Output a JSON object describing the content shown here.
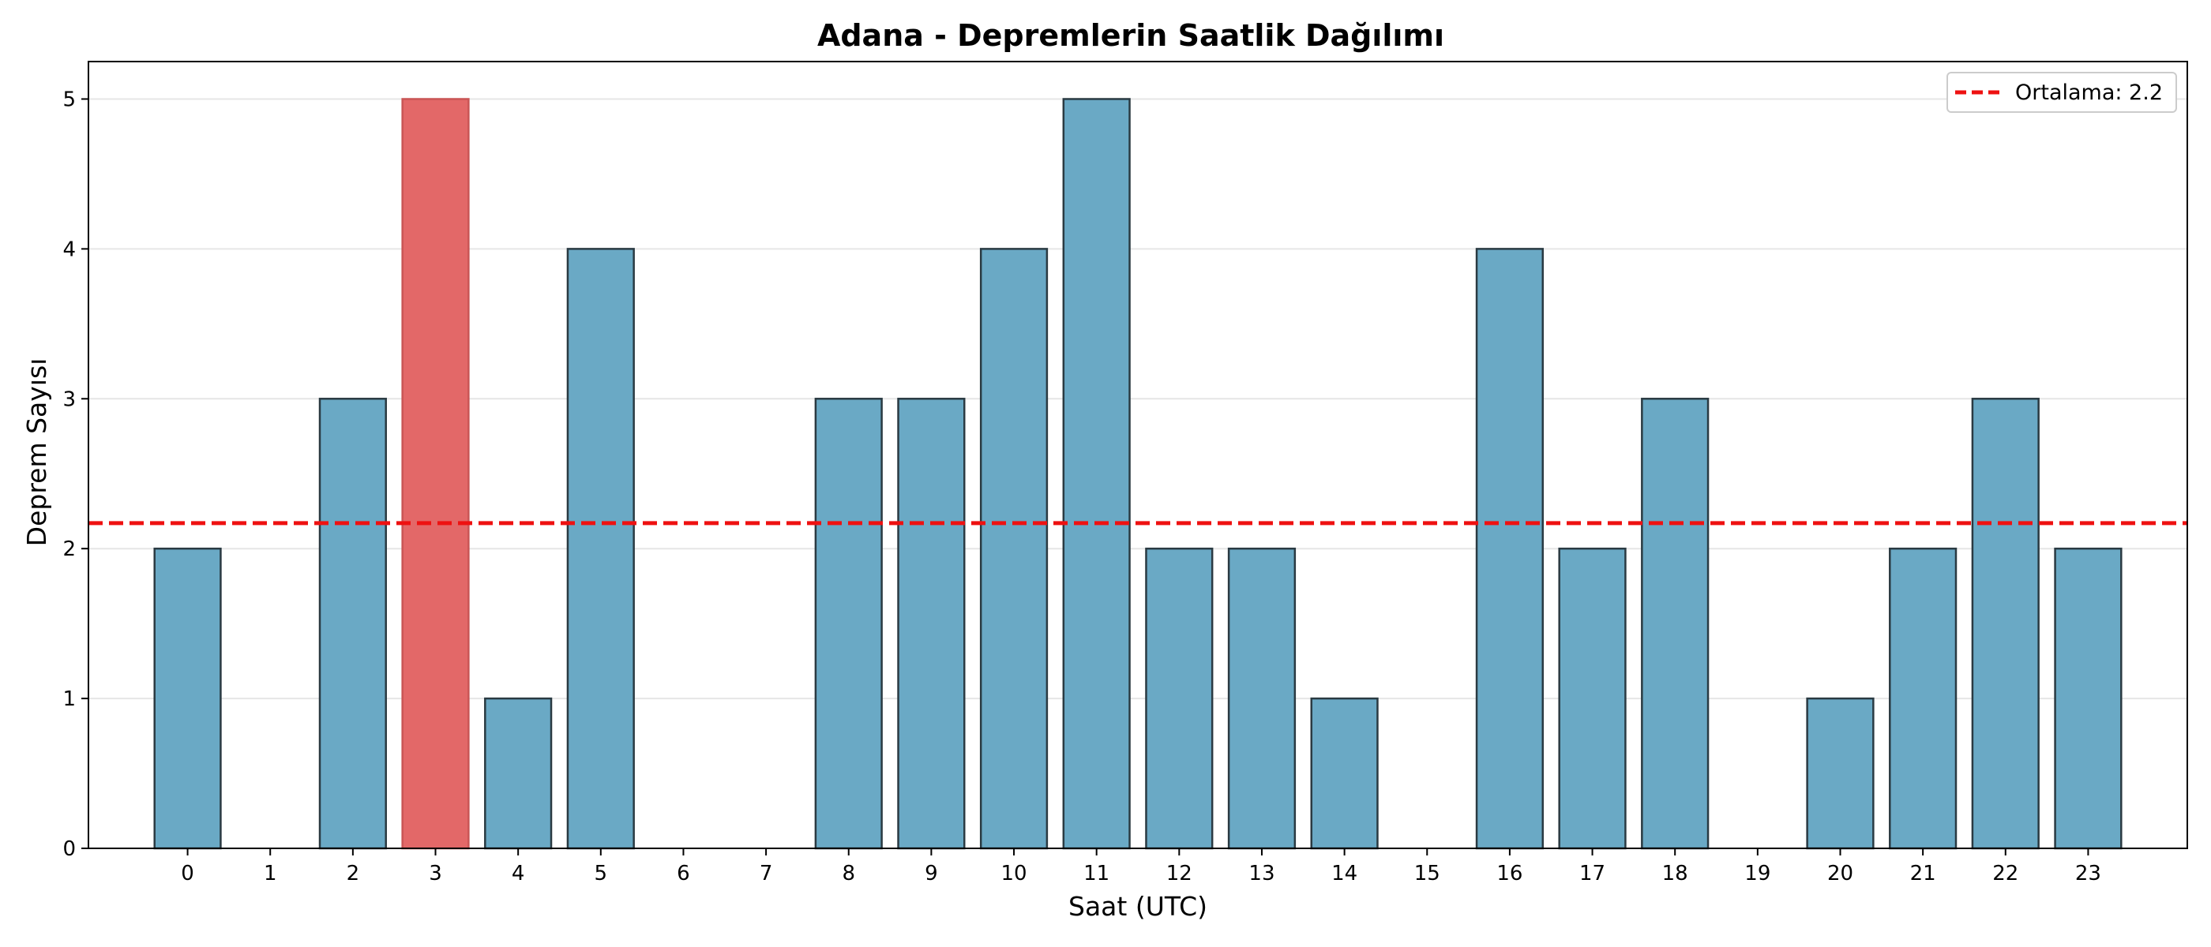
{
  "chart_data": {
    "type": "bar",
    "title": "Adana - Depremlerin Saatlik Dağılımı",
    "xlabel": "Saat (UTC)",
    "ylabel": "Deprem Sayısı",
    "categories": [
      "0",
      "1",
      "2",
      "3",
      "4",
      "5",
      "6",
      "7",
      "8",
      "9",
      "10",
      "11",
      "12",
      "13",
      "14",
      "15",
      "16",
      "17",
      "18",
      "19",
      "20",
      "21",
      "22",
      "23"
    ],
    "values": [
      2,
      0,
      3,
      5,
      1,
      4,
      0,
      0,
      3,
      3,
      4,
      5,
      2,
      2,
      1,
      0,
      4,
      2,
      3,
      0,
      1,
      2,
      3,
      2
    ],
    "highlight_index": 3,
    "ylim": [
      0,
      5.25
    ],
    "yticks": [
      0,
      1,
      2,
      3,
      4,
      5
    ],
    "grid": "horizontal",
    "mean_line": {
      "value": 2.17,
      "label": "Ortalama: 2.2"
    },
    "legend_position": "top-right",
    "colors": {
      "bar": "#6aa9c5",
      "bar_highlight": "#e36868",
      "bar_edge": "#2a3a42",
      "mean_line": "#ee1111",
      "grid": "#e6e6e6"
    }
  }
}
